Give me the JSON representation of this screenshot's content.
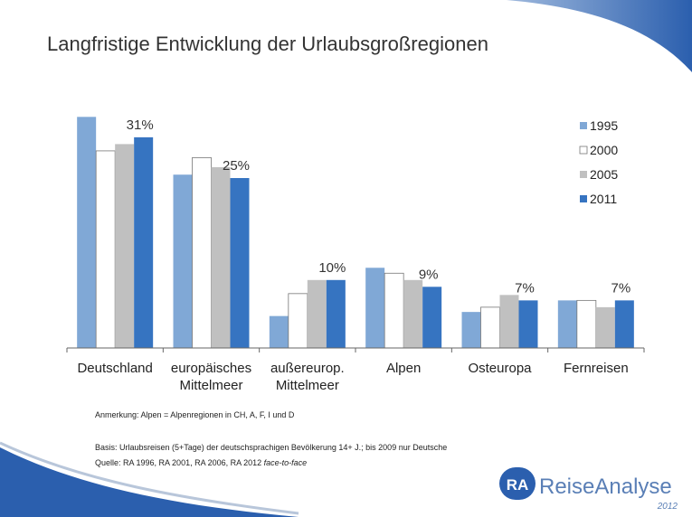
{
  "chart_data": {
    "type": "bar",
    "title": "Langfristige Entwicklung der Urlaubsgroßregionen",
    "categories": [
      "Deutschland",
      "europäisches\nMittelmeer",
      "außereurop.\nMittelmeer",
      "Alpen",
      "Osteuropa",
      "Fernreisen"
    ],
    "series": [
      {
        "name": "1995",
        "color": "#80a8d6",
        "values": [
          34,
          25.5,
          4.7,
          11.8,
          5.3,
          7
        ]
      },
      {
        "name": "2000",
        "color": "#ffffff",
        "values": [
          29,
          28,
          8,
          11,
          6,
          7
        ]
      },
      {
        "name": "2005",
        "color": "#c0c0c0",
        "values": [
          30,
          26.6,
          10,
          10,
          7.8,
          6
        ]
      },
      {
        "name": "2011",
        "color": "#3674c1",
        "values": [
          31,
          25,
          10,
          9,
          7,
          7
        ],
        "value_labels": [
          "31%",
          "25%",
          "10%",
          "9%",
          "7%",
          "7%"
        ]
      }
    ],
    "legend": "top-right"
  },
  "notes": {
    "anmerkung": "Anmerkung: Alpen = Alpenregionen in CH, A, F, I und D",
    "basis": "Basis: Urlaubsreisen (5+Tage) der deutschsprachigen Bevölkerung 14+ J.; bis 2009 nur Deutsche",
    "quelle": "Quelle: RA 1996, RA 2001, RA 2006, RA 2012 ",
    "quelle_italic": "face-to-face"
  },
  "logo": {
    "mark": "RA",
    "name": "ReiseAnalyse",
    "year": "2012"
  }
}
